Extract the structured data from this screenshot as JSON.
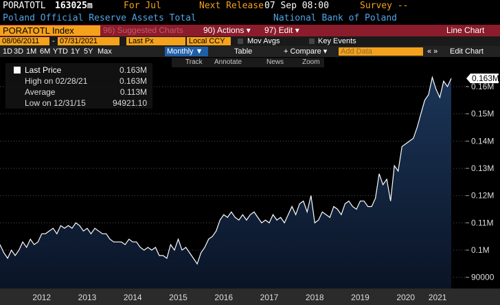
{
  "header": {
    "ticker": "PORATOTL",
    "value": "163025m",
    "period": "For Jul",
    "next_release_label": "Next Release",
    "next_release": "07 Sep 08:00",
    "survey": "Survey --",
    "name": "Poland Official Reserve Assets Total",
    "source": "National Bank of Poland"
  },
  "menu": {
    "security": "PORATOTL Index",
    "suggested": "96) Suggested Charts",
    "actions": "90) Actions ▾",
    "edit": "97) Edit ▾",
    "view": "Line Chart"
  },
  "settings": {
    "start": "08/06/2011",
    "separator": "-",
    "end": "07/31/2021",
    "field": "Last Px",
    "currency": "Local CCY",
    "mov_avgs": "Mov Avgs",
    "key_events": "Key Events"
  },
  "toolbar": {
    "periods": [
      "1D",
      "3D",
      "1M",
      "6M",
      "YTD",
      "1Y",
      "5Y",
      "Max"
    ],
    "frequency": "Monthly ▼",
    "table": "Table",
    "compare": "+ Compare ▾",
    "add_data": "Add Data",
    "edit_chart": "Edit Chart"
  },
  "chart_tools": [
    "Track",
    "Annotate",
    "News",
    "Zoom"
  ],
  "legend": [
    {
      "label": "Last Price",
      "value": "0.163M"
    },
    {
      "label": "High on 02/28/21",
      "value": "0.163M"
    },
    {
      "label": "Average",
      "value": "0.113M"
    },
    {
      "label": "Low on 12/31/15",
      "value": "94921.10"
    }
  ],
  "chart_data": {
    "type": "area",
    "x": [
      2011.583,
      2011.667,
      2011.75,
      2011.833,
      2011.917,
      2012,
      2012.083,
      2012.167,
      2012.25,
      2012.333,
      2012.417,
      2012.5,
      2012.583,
      2012.667,
      2012.75,
      2012.833,
      2012.917,
      2013,
      2013.083,
      2013.167,
      2013.25,
      2013.333,
      2013.417,
      2013.5,
      2013.583,
      2013.667,
      2013.75,
      2013.833,
      2013.917,
      2014,
      2014.083,
      2014.167,
      2014.25,
      2014.333,
      2014.417,
      2014.5,
      2014.583,
      2014.667,
      2014.75,
      2014.833,
      2014.917,
      2015,
      2015.083,
      2015.167,
      2015.25,
      2015.333,
      2015.417,
      2015.5,
      2015.583,
      2015.667,
      2015.75,
      2015.833,
      2015.917,
      2016,
      2016.083,
      2016.167,
      2016.25,
      2016.333,
      2016.417,
      2016.5,
      2016.583,
      2016.667,
      2016.75,
      2016.833,
      2016.917,
      2017,
      2017.083,
      2017.167,
      2017.25,
      2017.333,
      2017.417,
      2017.5,
      2017.583,
      2017.667,
      2017.75,
      2017.833,
      2017.917,
      2018,
      2018.083,
      2018.167,
      2018.25,
      2018.333,
      2018.417,
      2018.5,
      2018.583,
      2018.667,
      2018.75,
      2018.833,
      2018.917,
      2019,
      2019.083,
      2019.167,
      2019.25,
      2019.333,
      2019.417,
      2019.5,
      2019.583,
      2019.667,
      2019.75,
      2019.833,
      2019.917,
      2020,
      2020.083,
      2020.167,
      2020.25,
      2020.333,
      2020.417,
      2020.5,
      2020.583,
      2020.667,
      2020.75,
      2020.833,
      2020.917,
      2021,
      2021.083,
      2021.167,
      2021.25,
      2021.333,
      2021.417,
      2021.5
    ],
    "series": [
      {
        "name": "Last Price",
        "color": "#ffffff",
        "values": [
          102000,
          99000,
          97000,
          100000,
          98000,
          100000,
          103000,
          101000,
          104000,
          102000,
          103000,
          106000,
          106000,
          107000,
          108000,
          106000,
          109000,
          108000,
          109000,
          108000,
          110000,
          109000,
          107000,
          108000,
          106000,
          108000,
          107000,
          106000,
          106000,
          104000,
          103000,
          103000,
          103000,
          102000,
          104000,
          103000,
          103000,
          101000,
          100000,
          101000,
          100000,
          101000,
          98000,
          98000,
          97000,
          102000,
          100000,
          104000,
          100000,
          101000,
          99000,
          97000,
          94921.1,
          99000,
          101000,
          104000,
          105000,
          107000,
          111000,
          113000,
          112000,
          114000,
          112000,
          111000,
          113000,
          111000,
          113000,
          114000,
          112000,
          110000,
          111000,
          110000,
          113000,
          111000,
          112000,
          110000,
          113000,
          116000,
          113000,
          117000,
          118000,
          114000,
          120000,
          110000,
          111000,
          114000,
          113000,
          112000,
          116000,
          115000,
          113000,
          117000,
          118000,
          116000,
          115000,
          118000,
          118000,
          116000,
          116000,
          119000,
          128000,
          124000,
          126000,
          118000,
          131000,
          129000,
          138000,
          139000,
          140000,
          141000,
          145000,
          150000,
          155000,
          157000,
          163400,
          159000,
          156000,
          162000,
          160000,
          163025
        ]
      }
    ],
    "area_color": "#1b3558",
    "last_value_label": "0.163M",
    "xlim": [
      2011.583,
      2021.5
    ],
    "xticks": [
      {
        "value": 2012.5,
        "label": "2012"
      },
      {
        "value": 2013.5,
        "label": "2013"
      },
      {
        "value": 2014.5,
        "label": "2014"
      },
      {
        "value": 2015.5,
        "label": "2015"
      },
      {
        "value": 2016.5,
        "label": "2016"
      },
      {
        "value": 2017.5,
        "label": "2017"
      },
      {
        "value": 2018.5,
        "label": "2018"
      },
      {
        "value": 2019.5,
        "label": "2019"
      },
      {
        "value": 2020.5,
        "label": "2020"
      },
      {
        "value": 2021.2,
        "label": "2021"
      }
    ],
    "ylim": [
      85900,
      170100
    ],
    "yticks": [
      90000,
      {
        "value": 100000,
        "label": "0.1M"
      },
      {
        "value": 110000,
        "label": "0.11M"
      },
      {
        "value": 120000,
        "label": "0.12M"
      },
      {
        "value": 130000,
        "label": "0.13M"
      },
      {
        "value": 140000,
        "label": "0.14M"
      },
      {
        "value": 150000,
        "label": "0.15M"
      },
      {
        "value": 160000,
        "label": "0.16M"
      }
    ],
    "grid": true
  }
}
